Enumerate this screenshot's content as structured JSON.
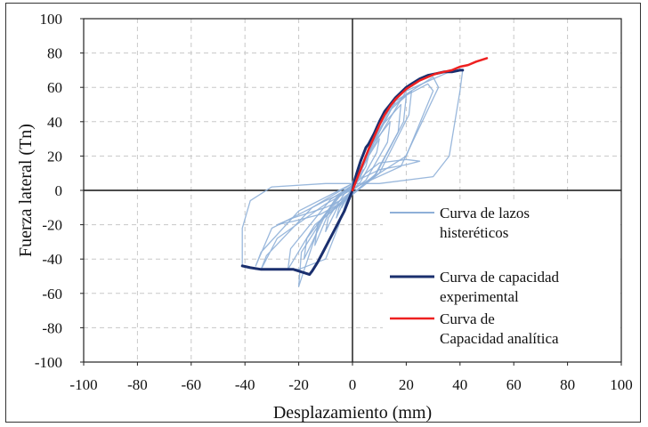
{
  "chart_data": {
    "type": "line",
    "xlabel": "Desplazamiento (mm)",
    "ylabel": "Fuerza lateral (Tn)",
    "xlim": [
      -100,
      100
    ],
    "ylim": [
      -100,
      100
    ],
    "x_ticks": [
      -100,
      -80,
      -60,
      -40,
      -20,
      0,
      20,
      40,
      60,
      80,
      100
    ],
    "y_ticks": [
      -100,
      -80,
      -60,
      -40,
      -20,
      0,
      20,
      40,
      60,
      80,
      100
    ],
    "grid": true,
    "legend_position": "lower-right",
    "legend": [
      {
        "lines": [
          "Curva de lazos",
          "histeréticos"
        ],
        "series": 0
      },
      {
        "lines": [
          "Curva de capacidad",
          "experimental"
        ],
        "series": 1
      },
      {
        "lines": [
          "Curva de",
          "Capacidad analítica"
        ],
        "series": 2
      }
    ],
    "series": [
      {
        "color": "#8fb0d8",
        "width": 1.3,
        "loops": [
          [
            [
              0,
              0
            ],
            [
              2,
              6
            ],
            [
              4,
              12
            ],
            [
              3,
              8
            ],
            [
              0,
              2
            ],
            [
              -2,
              -4
            ],
            [
              -4,
              -10
            ],
            [
              -3,
              -6
            ],
            [
              0,
              0
            ]
          ],
          [
            [
              0,
              1
            ],
            [
              4,
              14
            ],
            [
              6,
              20
            ],
            [
              5,
              14
            ],
            [
              1,
              3
            ],
            [
              -3,
              -6
            ],
            [
              -6,
              -16
            ],
            [
              -5,
              -10
            ],
            [
              -1,
              -1
            ],
            [
              0,
              1
            ]
          ],
          [
            [
              0,
              2
            ],
            [
              6,
              20
            ],
            [
              10,
              30
            ],
            [
              9,
              22
            ],
            [
              3,
              5
            ],
            [
              -5,
              -8
            ],
            [
              -10,
              -24
            ],
            [
              -9,
              -16
            ],
            [
              -3,
              -2
            ],
            [
              0,
              2
            ]
          ],
          [
            [
              0,
              2
            ],
            [
              8,
              28
            ],
            [
              14,
              40
            ],
            [
              13,
              28
            ],
            [
              5,
              6
            ],
            [
              -8,
              -10
            ],
            [
              -14,
              -32
            ],
            [
              -13,
              -20
            ],
            [
              -4,
              -2
            ],
            [
              0,
              2
            ]
          ],
          [
            [
              0,
              3
            ],
            [
              10,
              36
            ],
            [
              18,
              50
            ],
            [
              17,
              34
            ],
            [
              8,
              8
            ],
            [
              -10,
              -14
            ],
            [
              -18,
              -40
            ],
            [
              -17,
              -28
            ],
            [
              -5,
              -3
            ],
            [
              0,
              3
            ]
          ],
          [
            [
              0,
              3
            ],
            [
              12,
              44
            ],
            [
              20,
              55
            ],
            [
              19,
              40
            ],
            [
              9,
              10
            ],
            [
              -12,
              -18
            ],
            [
              -20,
              -56
            ],
            [
              -19,
              -36
            ],
            [
              -6,
              -4
            ],
            [
              0,
              3
            ]
          ],
          [
            [
              0,
              3
            ],
            [
              14,
              48
            ],
            [
              22,
              58
            ],
            [
              21,
              44
            ],
            [
              10,
              10
            ],
            [
              -14,
              -20
            ],
            [
              -24,
              -46
            ],
            [
              -23,
              -34
            ],
            [
              -8,
              -5
            ],
            [
              0,
              3
            ]
          ],
          [
            [
              0,
              4
            ],
            [
              16,
              52
            ],
            [
              28,
              62
            ],
            [
              30,
              58
            ],
            [
              20,
              20
            ],
            [
              5,
              5
            ],
            [
              -10,
              -8
            ],
            [
              -28,
              -28
            ],
            [
              -34,
              -46
            ],
            [
              -32,
              -38
            ],
            [
              -15,
              -10
            ],
            [
              0,
              4
            ]
          ],
          [
            [
              0,
              4
            ],
            [
              16,
              52
            ],
            [
              30,
              66
            ],
            [
              32,
              60
            ],
            [
              18,
              14
            ],
            [
              -10,
              -6
            ],
            [
              -30,
              -22
            ],
            [
              -36,
              -44
            ],
            [
              -34,
              -36
            ],
            [
              -20,
              -12
            ],
            [
              0,
              4
            ]
          ],
          [
            [
              0,
              5
            ],
            [
              20,
              58
            ],
            [
              36,
              69
            ],
            [
              41,
              70
            ],
            [
              40,
              58
            ],
            [
              36,
              20
            ],
            [
              30,
              8
            ],
            [
              10,
              4
            ],
            [
              -10,
              4
            ],
            [
              -30,
              2
            ],
            [
              -38,
              -6
            ],
            [
              -41,
              -22
            ],
            [
              -41,
              -44
            ],
            [
              -36,
              -46
            ],
            [
              -20,
              -46
            ],
            [
              -10,
              -40
            ],
            [
              -5,
              -20
            ],
            [
              0,
              5
            ]
          ],
          [
            [
              0,
              2
            ],
            [
              5,
              10
            ],
            [
              10,
              16
            ],
            [
              20,
              18
            ],
            [
              25,
              17
            ],
            [
              20,
              15
            ],
            [
              10,
              12
            ],
            [
              2,
              6
            ],
            [
              0,
              2
            ]
          ],
          [
            [
              0,
              -2
            ],
            [
              -5,
              -8
            ],
            [
              -12,
              -14
            ],
            [
              -22,
              -18
            ],
            [
              -28,
              -20
            ],
            [
              -22,
              -16
            ],
            [
              -10,
              -10
            ],
            [
              -2,
              -4
            ],
            [
              0,
              -2
            ]
          ]
        ]
      },
      {
        "color": "#1a2f6e",
        "width": 3,
        "x": [
          -41,
          -38,
          -34,
          -30,
          -26,
          -22,
          -20,
          -18,
          -16,
          -15,
          -13,
          -11,
          -9,
          -7,
          -5,
          -3,
          -1,
          0,
          1,
          2,
          3,
          4,
          5,
          6,
          8,
          10,
          12,
          14,
          16,
          18,
          20,
          22,
          25,
          28,
          31,
          34,
          37,
          40,
          41
        ],
        "y": [
          -44,
          -45,
          -46,
          -46,
          -46,
          -46,
          -47,
          -48,
          -49,
          -47,
          -42,
          -36,
          -30,
          -24,
          -18,
          -12,
          -4,
          0,
          7,
          12,
          17,
          21,
          25,
          27,
          33,
          40,
          46,
          50,
          54,
          57,
          60,
          62,
          65,
          67,
          68,
          69,
          69,
          70,
          70
        ]
      },
      {
        "color": "#ee2020",
        "width": 2.5,
        "x": [
          0,
          2,
          4,
          6,
          8,
          10,
          12,
          14,
          16,
          18,
          20,
          22,
          25,
          28,
          31,
          34,
          37,
          40,
          43,
          46,
          50
        ],
        "y": [
          0,
          8,
          16,
          24,
          31,
          38,
          44,
          49,
          53,
          56,
          59,
          61,
          64,
          66,
          68,
          69,
          70,
          72,
          73,
          75,
          77
        ]
      }
    ]
  }
}
